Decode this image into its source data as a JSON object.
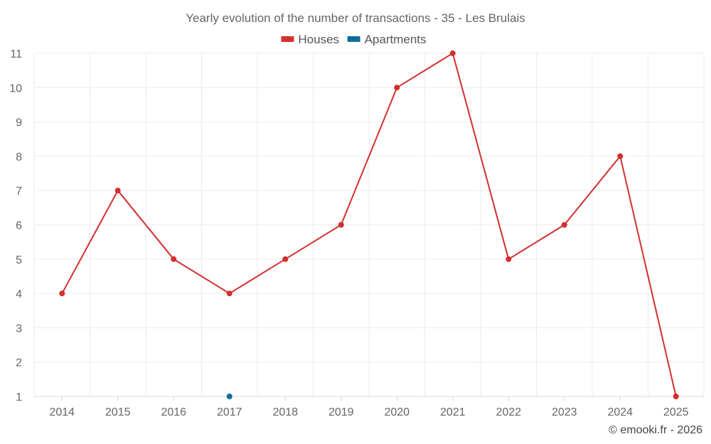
{
  "chart_data": {
    "type": "line",
    "title": "Yearly evolution of the number of transactions - 35 - Les Brulais",
    "x": [
      "2014",
      "2015",
      "2016",
      "2017",
      "2018",
      "2019",
      "2020",
      "2021",
      "2022",
      "2023",
      "2024",
      "2025"
    ],
    "yticks": [
      1,
      2,
      3,
      4,
      5,
      6,
      7,
      8,
      9,
      10,
      11
    ],
    "ylim": [
      1,
      11
    ],
    "xlabel": "",
    "ylabel": "",
    "grid": true,
    "legend_position": "top-center",
    "series": [
      {
        "name": "Houses",
        "color": "#d32f2f",
        "values": [
          4,
          7,
          5,
          4,
          5,
          6,
          10,
          11,
          5,
          6,
          8,
          1
        ]
      },
      {
        "name": "Apartments",
        "color": "#0d6e9e",
        "values": [
          null,
          null,
          null,
          1,
          null,
          null,
          null,
          null,
          null,
          null,
          null,
          null
        ]
      }
    ],
    "credit": "© emooki.fr - 2026"
  }
}
